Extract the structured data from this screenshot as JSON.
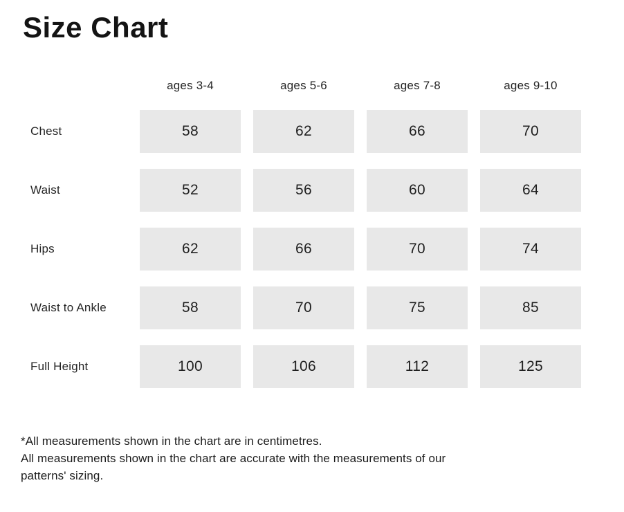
{
  "title": "Size Chart",
  "chart_data": {
    "type": "table",
    "title": "Size Chart",
    "columns": [
      "ages 3-4",
      "ages 5-6",
      "ages 7-8",
      "ages 9-10"
    ],
    "rows": [
      {
        "label": "Chest",
        "values": [
          58,
          62,
          66,
          70
        ]
      },
      {
        "label": "Waist",
        "values": [
          52,
          56,
          60,
          64
        ]
      },
      {
        "label": "Hips",
        "values": [
          62,
          66,
          70,
          74
        ]
      },
      {
        "label": "Waist to Ankle",
        "values": [
          58,
          70,
          75,
          85
        ]
      },
      {
        "label": "Full Height",
        "values": [
          100,
          106,
          112,
          125
        ]
      }
    ]
  },
  "notes": {
    "line1": "*All measurements shown in the chart are in centimetres.",
    "line2": "All measurements shown in the chart are accurate with the measurements of our",
    "line3": "patterns' sizing."
  },
  "colors": {
    "background": "#ffffff",
    "cell_bg": "#e8e8e8",
    "text_primary": "#1d1d1d"
  }
}
